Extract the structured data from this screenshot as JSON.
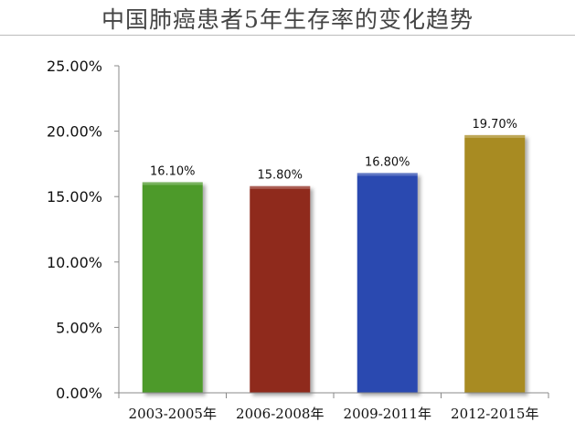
{
  "chart_data": {
    "type": "bar",
    "title": "中国肺癌患者5年生存率的变化趋势",
    "xlabel": "",
    "ylabel": "",
    "categories": [
      "2003-2005年",
      "2006-2008年",
      "2009-2011年",
      "2012-2015年"
    ],
    "values": [
      16.1,
      15.8,
      16.8,
      19.7
    ],
    "data_labels": [
      "16.10%",
      "15.80%",
      "16.80%",
      "19.70%"
    ],
    "ylim": [
      0,
      25
    ],
    "yticks": [
      0,
      5,
      10,
      15,
      20,
      25
    ],
    "ytick_labels": [
      "0.00%",
      "5.00%",
      "10.00%",
      "15.00%",
      "20.00%",
      "25.00%"
    ],
    "colors": [
      "#4e9a2c",
      "#8f2a1f",
      "#2a48b0",
      "#a88b22"
    ],
    "grid": false,
    "legend": "none"
  }
}
